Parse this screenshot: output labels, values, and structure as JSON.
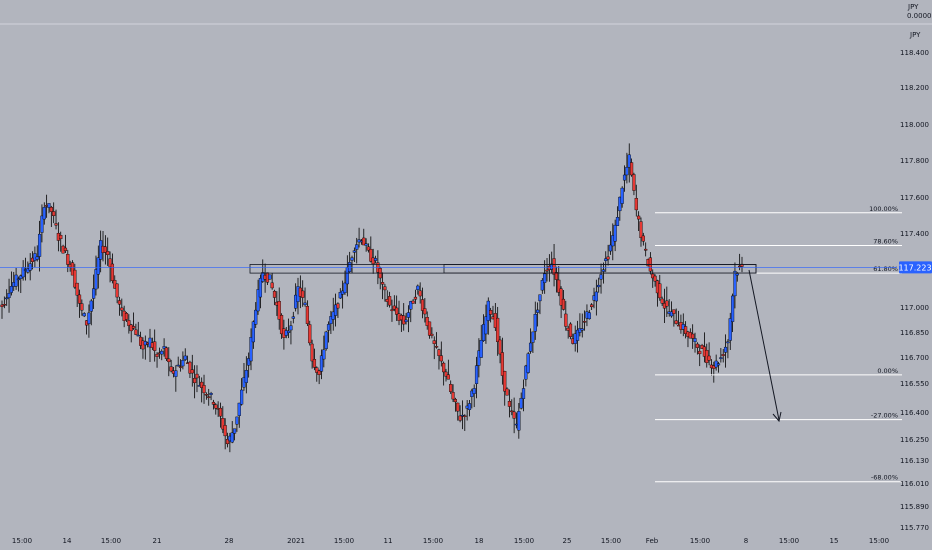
{
  "header": {
    "currency": "JPY",
    "value": "0.0000",
    "unit_badge": "JPY"
  },
  "current_price": {
    "label": "117.223",
    "value": 117.223,
    "color": "#2962ff"
  },
  "colors": {
    "background": "#b2b5be",
    "up_candle": "#2962ff",
    "down_candle": "#e53935",
    "wick": "#000000",
    "fib_line": "#ffffff",
    "axis_text": "#131722"
  },
  "price_axis": {
    "min": 115.7,
    "max": 118.6,
    "ticks": [
      "118.400",
      "118.200",
      "118.000",
      "117.800",
      "117.600",
      "117.400",
      "117.000",
      "116.850",
      "116.700",
      "116.550",
      "116.400",
      "116.250",
      "116.130",
      "116.010",
      "115.890",
      "115.770"
    ]
  },
  "time_axis": {
    "labels": [
      "15:00",
      "14",
      "15:00",
      "21",
      "28",
      "2021",
      "15:00",
      "11",
      "15:00",
      "18",
      "15:00",
      "25",
      "15:00",
      "Feb",
      "15:00",
      "8",
      "15:00",
      "15",
      "15:00"
    ]
  },
  "fib_levels": [
    {
      "label": "100.00%",
      "price": 117.54
    },
    {
      "label": "78.60%",
      "price": 117.35
    },
    {
      "label": "61.80%",
      "price": 117.19
    },
    {
      "label": "0.00%",
      "price": 116.6
    },
    {
      "label": "-27.00%",
      "price": 116.34
    },
    {
      "label": "-68.00%",
      "price": 115.98
    }
  ],
  "chart_data": {
    "type": "candlestick",
    "title": "",
    "xlabel": "",
    "ylabel": "",
    "ylim": [
      115.7,
      118.6
    ],
    "grid": false,
    "ohlc_sample_closes": [
      117.0,
      117.1,
      117.15,
      117.2,
      117.25,
      117.3,
      117.6,
      117.55,
      117.4,
      117.3,
      117.2,
      117.0,
      116.9,
      117.1,
      117.35,
      117.3,
      117.1,
      116.95,
      116.9,
      116.85,
      116.75,
      116.8,
      116.7,
      116.75,
      116.6,
      116.65,
      116.7,
      116.6,
      116.55,
      116.5,
      116.45,
      116.35,
      116.2,
      116.3,
      116.5,
      116.7,
      117.0,
      117.2,
      117.15,
      117.0,
      116.8,
      116.9,
      117.1,
      117.0,
      116.7,
      116.6,
      116.85,
      116.95,
      117.05,
      117.2,
      117.35,
      117.4,
      117.3,
      117.25,
      117.1,
      117.0,
      116.95,
      116.9,
      117.0,
      117.1,
      116.95,
      116.8,
      116.7,
      116.6,
      116.45,
      116.35,
      116.4,
      116.55,
      116.8,
      117.0,
      116.9,
      116.6,
      116.4,
      116.3,
      116.55,
      116.8,
      117.0,
      117.2,
      117.25,
      117.1,
      116.9,
      116.8,
      116.85,
      116.95,
      117.05,
      117.2,
      117.3,
      117.45,
      117.7,
      117.85,
      117.55,
      117.35,
      117.2,
      117.1,
      117.0,
      116.95,
      116.9,
      116.85,
      116.8,
      116.75,
      116.7,
      116.65,
      116.7,
      116.8,
      117.2,
      117.22
    ]
  },
  "zones": [
    {
      "name": "resistance-zone-left",
      "price_top": 117.24,
      "price_bottom": 117.19
    },
    {
      "name": "resistance-zone-right",
      "price_top": 117.24,
      "price_bottom": 117.19
    }
  ]
}
